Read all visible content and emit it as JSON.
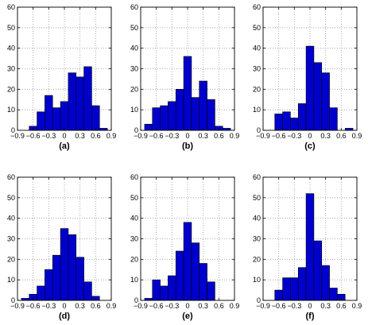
{
  "chart_data": [
    {
      "type": "bar",
      "panel_label": "(a)",
      "bin_width": 0.15,
      "x": [
        -0.75,
        -0.6,
        -0.45,
        -0.3,
        -0.15,
        0.0,
        0.15,
        0.3,
        0.45,
        0.6,
        0.75
      ],
      "values": [
        0,
        2,
        9,
        17,
        11,
        14,
        28,
        26,
        31,
        12,
        1
      ],
      "xlim": [
        -0.9,
        0.9
      ],
      "ylim": [
        0,
        60
      ],
      "xticks": [
        "−0.9",
        "−0.6",
        "−0.3",
        "0",
        "0.3",
        "0.6",
        "0.9"
      ],
      "yticks": [
        "0",
        "10",
        "20",
        "30",
        "40",
        "50",
        "60"
      ],
      "grid": true
    },
    {
      "type": "bar",
      "panel_label": "(b)",
      "bin_width": 0.15,
      "x": [
        -0.75,
        -0.6,
        -0.45,
        -0.3,
        -0.15,
        0.0,
        0.15,
        0.3,
        0.45,
        0.6,
        0.75
      ],
      "values": [
        3,
        11,
        12,
        14,
        20,
        36,
        16,
        24,
        15,
        2,
        1
      ],
      "xlim": [
        -0.9,
        0.9
      ],
      "ylim": [
        0,
        60
      ],
      "xticks": [
        "−0.9",
        "−0.6",
        "−0.3",
        "0",
        "0.3",
        "0.6",
        "0.9"
      ],
      "yticks": [
        "0",
        "10",
        "20",
        "30",
        "40",
        "50",
        "60"
      ],
      "grid": true
    },
    {
      "type": "bar",
      "panel_label": "(c)",
      "bin_width": 0.15,
      "x": [
        -0.75,
        -0.6,
        -0.45,
        -0.3,
        -0.15,
        0.0,
        0.15,
        0.3,
        0.45,
        0.6,
        0.75
      ],
      "values": [
        0,
        8,
        9,
        6,
        13,
        41,
        33,
        28,
        11,
        0,
        1
      ],
      "xlim": [
        -0.9,
        0.9
      ],
      "ylim": [
        0,
        60
      ],
      "xticks": [
        "−0.9",
        "−0.6",
        "−0.3",
        "0",
        "0.3",
        "0.6",
        "0.9"
      ],
      "yticks": [
        "0",
        "10",
        "20",
        "30",
        "40",
        "50",
        "60"
      ],
      "grid": true
    },
    {
      "type": "bar",
      "panel_label": "(d)",
      "bin_width": 0.15,
      "x": [
        -0.75,
        -0.6,
        -0.45,
        -0.3,
        -0.15,
        0.0,
        0.15,
        0.3,
        0.45,
        0.6,
        0.75
      ],
      "values": [
        1,
        3,
        7,
        15,
        22,
        35,
        32,
        21,
        9,
        2,
        0
      ],
      "xlim": [
        -0.9,
        0.9
      ],
      "ylim": [
        0,
        60
      ],
      "xticks": [
        "−0.9",
        "−0.6",
        "−0.3",
        "0",
        "0.3",
        "0.6",
        "0.9"
      ],
      "yticks": [
        "0",
        "10",
        "20",
        "30",
        "40",
        "50",
        "60"
      ],
      "grid": true
    },
    {
      "type": "bar",
      "panel_label": "(e)",
      "bin_width": 0.15,
      "x": [
        -0.75,
        -0.6,
        -0.45,
        -0.3,
        -0.15,
        0.0,
        0.15,
        0.3,
        0.45,
        0.6,
        0.75
      ],
      "values": [
        1,
        10,
        7,
        12,
        24,
        38,
        28,
        18,
        9,
        0,
        0
      ],
      "xlim": [
        -0.9,
        0.9
      ],
      "ylim": [
        0,
        60
      ],
      "xticks": [
        "−0.9",
        "−0.6",
        "−0.3",
        "0",
        "0.3",
        "0.6",
        "0.9"
      ],
      "yticks": [
        "0",
        "10",
        "20",
        "30",
        "40",
        "50",
        "60"
      ],
      "grid": true
    },
    {
      "type": "bar",
      "panel_label": "(f)",
      "bin_width": 0.15,
      "x": [
        -0.75,
        -0.6,
        -0.45,
        -0.3,
        -0.15,
        0.0,
        0.15,
        0.3,
        0.45,
        0.6,
        0.75
      ],
      "values": [
        0,
        5,
        11,
        11,
        16,
        52,
        29,
        17,
        6,
        3,
        0
      ],
      "xlim": [
        -0.9,
        0.9
      ],
      "ylim": [
        0,
        60
      ],
      "xticks": [
        "−0.9",
        "−0.6",
        "−0.3",
        "0",
        "0.3",
        "0.6",
        "0.9"
      ],
      "yticks": [
        "0",
        "10",
        "20",
        "30",
        "40",
        "50",
        "60"
      ],
      "grid": true
    }
  ],
  "colors": {
    "bar_fill": "#0000cc",
    "bar_edge": "#000000",
    "grid": "#9a9a9a",
    "axis": "#000000"
  }
}
